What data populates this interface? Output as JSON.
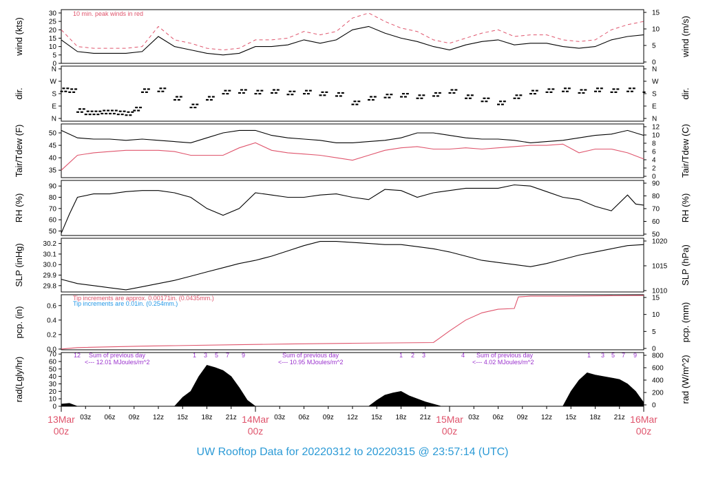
{
  "page": {
    "footer_title": "UW Rooftop Data for 20220312  to  20220315 @ 23:57:14  (UTC)"
  },
  "colors": {
    "axis": "#000000",
    "series_primary": "#000000",
    "series_red": "#df536b",
    "annotation_purple": "#9a32cd",
    "annotation_blue": "#2297e6",
    "date_labels": "#df536b",
    "footer": "#2297e6"
  },
  "chart_data": [
    {
      "id": "wind",
      "type": "line",
      "ylabel": "wind (kts)",
      "ylabel_right": "wind (m/s)",
      "yticks": [
        "0",
        "5",
        "10",
        "15",
        "20",
        "25",
        "30"
      ],
      "yticks_right": [
        "0",
        "5",
        "10",
        "15"
      ],
      "ylim": [
        0,
        32
      ],
      "annotation": "10 min. peak winds in red",
      "series": [
        {
          "role": "speed",
          "color": "#000000",
          "x_hours": [
            0,
            2,
            4,
            6,
            8,
            10,
            12,
            14,
            16,
            18,
            20,
            22,
            24,
            26,
            28,
            30,
            32,
            34,
            36,
            38,
            40,
            42,
            44,
            46,
            48,
            50,
            52,
            54,
            56,
            58,
            60,
            62,
            64,
            66,
            68,
            70,
            72
          ],
          "values": [
            14,
            7,
            6,
            6,
            6,
            7,
            16,
            10,
            8,
            6,
            5,
            6,
            10,
            10,
            11,
            14,
            12,
            14,
            20,
            22,
            18,
            15,
            13,
            10,
            8,
            11,
            13,
            14,
            11,
            12,
            12,
            10,
            9,
            10,
            14,
            16,
            17
          ]
        },
        {
          "role": "peak",
          "color": "#df536b",
          "x_hours": [
            0,
            2,
            4,
            6,
            8,
            10,
            12,
            14,
            16,
            18,
            20,
            22,
            24,
            26,
            28,
            30,
            32,
            34,
            36,
            38,
            40,
            42,
            44,
            46,
            48,
            50,
            52,
            54,
            56,
            58,
            60,
            62,
            64,
            66,
            68,
            70,
            72
          ],
          "values": [
            20,
            10,
            9,
            9,
            9,
            10,
            22,
            14,
            12,
            9,
            8,
            9,
            14,
            14,
            15,
            19,
            17,
            19,
            27,
            30,
            25,
            21,
            19,
            14,
            12,
            15,
            18,
            20,
            16,
            17,
            17,
            14,
            13,
            14,
            20,
            23,
            25
          ]
        }
      ]
    },
    {
      "id": "direction",
      "type": "scatter",
      "ylabel": "dir.",
      "ylabel_right": "dir.",
      "yticks": [
        "N",
        "E",
        "S",
        "W",
        "N"
      ],
      "yticks_right": [
        "N",
        "E",
        "S",
        "W",
        "N"
      ],
      "ylim": [
        0,
        360
      ],
      "series": [
        {
          "role": "direction",
          "color": "#000000",
          "x_hours": [
            0,
            1,
            2,
            3,
            4,
            5,
            6,
            7,
            8,
            9,
            10,
            12,
            14,
            16,
            18,
            20,
            22,
            24,
            26,
            28,
            30,
            32,
            34,
            36,
            38,
            40,
            42,
            44,
            46,
            48,
            50,
            52,
            54,
            56,
            58,
            60,
            62,
            64,
            66,
            68,
            70,
            72
          ],
          "values": [
            205,
            200,
            70,
            55,
            55,
            60,
            60,
            55,
            50,
            80,
            200,
            205,
            150,
            100,
            150,
            190,
            195,
            190,
            195,
            185,
            190,
            180,
            175,
            120,
            150,
            165,
            170,
            160,
            175,
            195,
            160,
            140,
            120,
            160,
            190,
            200,
            205,
            195,
            205,
            200,
            205,
            200
          ]
        }
      ]
    },
    {
      "id": "temperature",
      "type": "line",
      "ylabel": "Tair/Tdew (F)",
      "ylabel_right": "Tair/Tdew (C)",
      "yticks": [
        "35",
        "40",
        "45",
        "50"
      ],
      "yticks_right": [
        "0",
        "2",
        "4",
        "6",
        "8",
        "10",
        "12"
      ],
      "ylim": [
        32,
        53.6
      ],
      "series": [
        {
          "role": "Tair",
          "color": "#000000",
          "x_hours": [
            0,
            2,
            4,
            6,
            8,
            10,
            12,
            14,
            16,
            18,
            20,
            22,
            24,
            26,
            28,
            30,
            32,
            34,
            36,
            38,
            40,
            42,
            44,
            46,
            48,
            50,
            52,
            54,
            56,
            58,
            60,
            62,
            64,
            66,
            68,
            70,
            72
          ],
          "values": [
            51,
            48,
            47.5,
            47.5,
            47,
            47.5,
            47,
            46.5,
            46,
            48,
            50,
            51,
            51,
            49,
            48,
            47.5,
            47,
            46,
            46,
            46.5,
            47,
            48,
            50,
            50,
            49,
            48,
            47.5,
            47.5,
            47,
            46,
            46.5,
            47,
            48,
            49,
            49.5,
            51,
            49
          ]
        },
        {
          "role": "Tdew",
          "color": "#df536b",
          "x_hours": [
            0,
            2,
            4,
            6,
            8,
            10,
            12,
            14,
            16,
            18,
            20,
            22,
            24,
            26,
            28,
            30,
            32,
            34,
            36,
            38,
            40,
            42,
            44,
            46,
            48,
            50,
            52,
            54,
            56,
            58,
            60,
            62,
            64,
            66,
            68,
            70,
            72
          ],
          "values": [
            35,
            41,
            42,
            42.5,
            43,
            43,
            43,
            42.5,
            41,
            41,
            41,
            44,
            46,
            43,
            42,
            41.5,
            41,
            40,
            39,
            41,
            43,
            44,
            44.5,
            43.5,
            43.5,
            44,
            43.5,
            44,
            44.5,
            45,
            45,
            45.5,
            42,
            43.5,
            43.5,
            42,
            39.5
          ]
        }
      ]
    },
    {
      "id": "humidity",
      "type": "line",
      "ylabel": "RH (%)",
      "ylabel_right": "RH (%)",
      "yticks": [
        "50",
        "60",
        "70",
        "80",
        "90"
      ],
      "yticks_right": [
        "50",
        "60",
        "70",
        "80",
        "90"
      ],
      "ylim": [
        46,
        95
      ],
      "series": [
        {
          "role": "RH",
          "color": "#000000",
          "x_hours": [
            0,
            1,
            2,
            4,
            6,
            8,
            10,
            12,
            14,
            16,
            18,
            20,
            22,
            24,
            26,
            28,
            30,
            32,
            34,
            36,
            38,
            40,
            42,
            44,
            46,
            48,
            50,
            52,
            54,
            56,
            58,
            60,
            62,
            64,
            66,
            68,
            70,
            71,
            72
          ],
          "values": [
            48,
            65,
            80,
            83,
            83,
            85,
            86,
            86,
            84,
            80,
            70,
            64,
            70,
            84,
            82,
            80,
            80,
            82,
            83,
            80,
            78,
            87,
            86,
            80,
            84,
            86,
            88,
            88,
            88,
            91,
            90,
            85,
            80,
            78,
            72,
            68,
            82,
            74,
            73
          ]
        }
      ]
    },
    {
      "id": "pressure",
      "type": "line",
      "ylabel": "SLP (inHg)",
      "ylabel_right": "SLP (hPa)",
      "yticks": [
        "29.8",
        "29.9",
        "30.0",
        "30.1",
        "30.2"
      ],
      "yticks_right": [
        "1010",
        "1015",
        "1020"
      ],
      "ylim": [
        29.74,
        30.25
      ],
      "series": [
        {
          "role": "SLP",
          "color": "#000000",
          "x_hours": [
            0,
            2,
            4,
            6,
            8,
            10,
            12,
            14,
            16,
            18,
            20,
            22,
            24,
            26,
            28,
            30,
            32,
            34,
            36,
            38,
            40,
            42,
            44,
            46,
            48,
            50,
            52,
            54,
            56,
            58,
            60,
            62,
            64,
            66,
            68,
            70,
            72
          ],
          "values": [
            29.86,
            29.82,
            29.8,
            29.78,
            29.76,
            29.79,
            29.82,
            29.85,
            29.89,
            29.93,
            29.97,
            30.01,
            30.04,
            30.08,
            30.13,
            30.18,
            30.22,
            30.22,
            30.21,
            30.2,
            30.19,
            30.19,
            30.17,
            30.15,
            30.12,
            30.08,
            30.04,
            30.02,
            30.0,
            29.98,
            30.01,
            30.05,
            30.09,
            30.12,
            30.15,
            30.18,
            30.19
          ]
        }
      ]
    },
    {
      "id": "precipitation",
      "type": "line",
      "ylabel": "pcp. (in)",
      "ylabel_right": "pcp. (mm)",
      "yticks": [
        "0.0",
        "0.2",
        "0.4",
        "0.6"
      ],
      "yticks_right": [
        "0",
        "5",
        "10",
        "15"
      ],
      "ylim": [
        -0.01,
        0.75
      ],
      "annotations": [
        {
          "text": "Tip increments are approx. 0.00171in. (0.0435mm.)",
          "color": "#df536b"
        },
        {
          "text": "Tip increments are 0.01in. (0.254mm.)",
          "color": "#2297e6"
        }
      ],
      "series": [
        {
          "role": "cumulative",
          "color": "#df536b",
          "x_hours": [
            0,
            2,
            10,
            22,
            28,
            36,
            46,
            48,
            50,
            52,
            54,
            56,
            56.5,
            58,
            62,
            72
          ],
          "values": [
            0,
            0.02,
            0.04,
            0.06,
            0.07,
            0.08,
            0.09,
            0.25,
            0.4,
            0.5,
            0.55,
            0.56,
            0.72,
            0.73,
            0.73,
            0.74
          ]
        }
      ]
    },
    {
      "id": "radiation",
      "type": "area",
      "ylabel": "rad(Lgly/hr)",
      "ylabel_right": "rad (W/m^2)",
      "yticks": [
        "0",
        "10",
        "20",
        "30",
        "40",
        "50",
        "60",
        "70"
      ],
      "yticks_right": [
        "0",
        "200",
        "400",
        "600",
        "800"
      ],
      "ylim": [
        0,
        72
      ],
      "daily_notes": [
        {
          "text": "Sum of previous day",
          "value": "<--- 12.01 MJoules/m^2"
        },
        {
          "text": "Sum of previous day",
          "value": "<--- 10.95 MJoules/m^2"
        },
        {
          "text": "Sum of previous day",
          "value": "<--- 4.02 MJoules/m^2"
        }
      ],
      "marker_numbers": [
        "12",
        "1",
        "3",
        "5",
        "7",
        "9",
        "1",
        "2",
        "3",
        "4",
        "1",
        "3",
        "5",
        "7",
        "9"
      ],
      "series": [
        {
          "role": "solar",
          "color": "#000000",
          "x_hours": [
            0,
            1,
            2,
            14,
            15,
            16,
            17,
            18,
            19,
            20,
            21,
            22,
            23,
            24,
            38,
            39,
            40,
            41,
            42,
            43,
            44,
            45,
            46,
            47,
            62,
            63,
            64,
            65,
            66,
            67,
            68,
            69,
            70,
            71,
            72
          ],
          "values": [
            3,
            4,
            0,
            0,
            12,
            20,
            40,
            55,
            52,
            48,
            40,
            25,
            8,
            0,
            0,
            8,
            15,
            18,
            20,
            14,
            10,
            6,
            3,
            0,
            0,
            20,
            35,
            45,
            42,
            40,
            38,
            36,
            30,
            20,
            5
          ]
        }
      ]
    }
  ],
  "time_axis": {
    "hour_ticks": [
      "03z",
      "06z",
      "09z",
      "12z",
      "15z",
      "18z",
      "21z",
      "03z",
      "06z",
      "09z",
      "12z",
      "15z",
      "18z",
      "21z",
      "03z",
      "06z",
      "09z",
      "12z",
      "15z",
      "18z",
      "21z"
    ],
    "day_labels": [
      {
        "date": "13Mar",
        "time": "00z"
      },
      {
        "date": "14Mar",
        "time": "00z"
      },
      {
        "date": "15Mar",
        "time": "00z"
      },
      {
        "date": "16Mar",
        "time": "00z"
      }
    ]
  }
}
